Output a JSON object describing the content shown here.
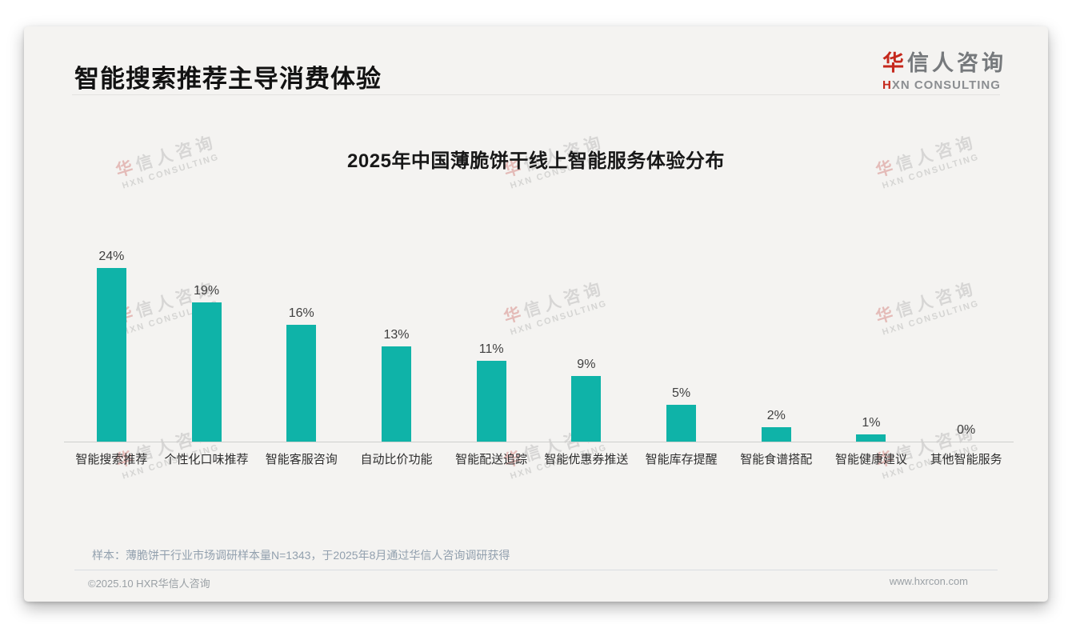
{
  "header": {
    "title": "智能搜索推荐主导消费体验"
  },
  "logo": {
    "name_first": "华",
    "name_rest": "信人咨询",
    "subtitle_first": "H",
    "subtitle_rest": "XN CONSULTING",
    "accent_color": "#c5281c"
  },
  "watermark": {
    "first": "华",
    "rest": "信人咨询",
    "line2": "HXN CONSULTING"
  },
  "chart_data": {
    "type": "bar",
    "title": "2025年中国薄脆饼干线上智能服务体验分布",
    "categories": [
      "智能搜索推荐",
      "个性化口味推荐",
      "智能客服咨询",
      "自动比价功能",
      "智能配送追踪",
      "智能优惠券推送",
      "智能库存提醒",
      "智能食谱搭配",
      "智能健康建议",
      "其他智能服务"
    ],
    "values": [
      24,
      19,
      16,
      13,
      11,
      9,
      5,
      2,
      1,
      0
    ],
    "value_labels": [
      "24%",
      "19%",
      "16%",
      "13%",
      "11%",
      "9%",
      "5%",
      "2%",
      "1%",
      "0%"
    ],
    "unit": "%",
    "bar_color": "#0fb3a8",
    "xlabel": "",
    "ylabel": "",
    "ylim": [
      0,
      25
    ],
    "grid": false,
    "legend": "none"
  },
  "footnote": "样本：薄脆饼干行业市场调研样本量N=1343，于2025年8月通过华信人咨询调研获得",
  "footer": {
    "copyright": "©2025.10 HXR华信人咨询",
    "website": "www.hxrcon.com"
  }
}
